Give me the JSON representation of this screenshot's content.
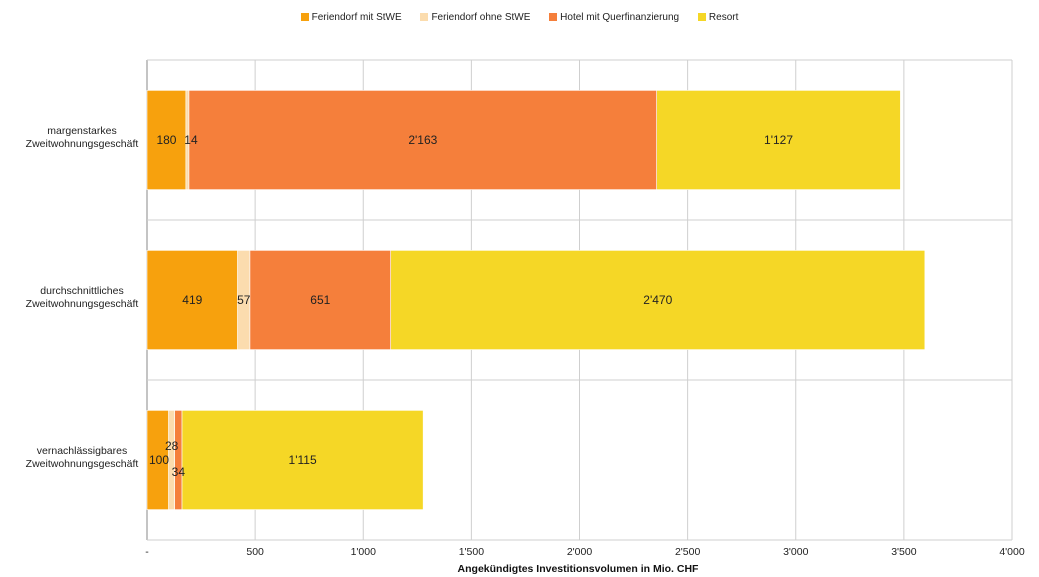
{
  "chart_data": {
    "type": "bar",
    "orientation": "horizontal",
    "stacked": true,
    "title": "",
    "xlabel": "Angekündigtes  Investitionsvolumen  in Mio. CHF",
    "ylabel": "",
    "xlim": [
      0,
      4000
    ],
    "xticks": [
      0,
      500,
      1000,
      1500,
      2000,
      2500,
      3000,
      3500,
      4000
    ],
    "xtick_labels": [
      "-",
      "500",
      "1'000",
      "1'500",
      "2'000",
      "2'500",
      "3'000",
      "3'500",
      "4'000"
    ],
    "grid": true,
    "legend_position": "top-center",
    "categories": [
      [
        "margenstarkes",
        "Zweitwohnungsgeschäft"
      ],
      [
        "durchschnittliches",
        "Zweitwohnungsgeschäft"
      ],
      [
        "vernachlässigbares",
        "Zweitwohnungsgeschäft"
      ]
    ],
    "series": [
      {
        "name": "Feriendorf mit StWE",
        "color": "#f7a10d",
        "values": [
          180,
          419,
          100
        ],
        "labels": [
          "180",
          "419",
          "100"
        ]
      },
      {
        "name": "Feriendorf ohne StWE",
        "color": "#fbdcae",
        "values": [
          14,
          57,
          28
        ],
        "labels": [
          "14",
          "57",
          "28"
        ]
      },
      {
        "name": "Hotel mit Querfinanzierung",
        "color": "#f57f3b",
        "values": [
          2163,
          651,
          34
        ],
        "labels": [
          "2'163",
          "651",
          "34"
        ]
      },
      {
        "name": "Resort",
        "color": "#f5d726",
        "values": [
          1127,
          2470,
          1115
        ],
        "labels": [
          "1'127",
          "2'470",
          "1'115"
        ]
      }
    ]
  }
}
